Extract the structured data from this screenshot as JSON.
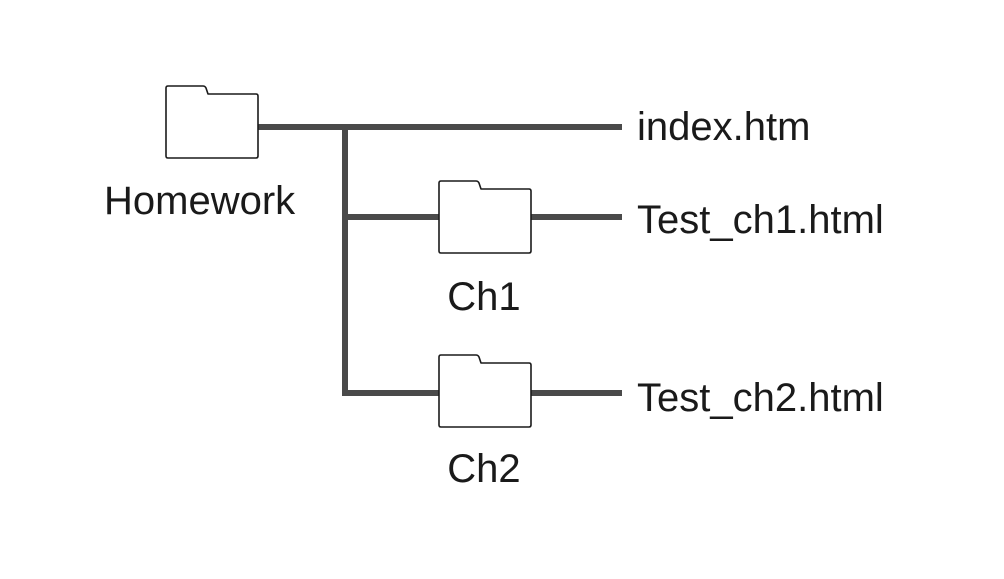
{
  "colors": {
    "connector": "#4a4a4a",
    "folder_stroke": "#1a1a1a",
    "folder_fill": "#ffffff",
    "text": "#1a1a1a",
    "background": "#ffffff"
  },
  "tree": {
    "root": {
      "icon": "folder-icon",
      "label": "Homework"
    },
    "children": [
      {
        "kind": "file",
        "label": "index.htm"
      },
      {
        "kind": "folder",
        "icon": "folder-icon",
        "label": "Ch1",
        "children": [
          {
            "kind": "file",
            "label": "Test_ch1.html"
          }
        ]
      },
      {
        "kind": "folder",
        "icon": "folder-icon",
        "label": "Ch2",
        "children": [
          {
            "kind": "file",
            "label": "Test_ch2.html"
          }
        ]
      }
    ]
  }
}
